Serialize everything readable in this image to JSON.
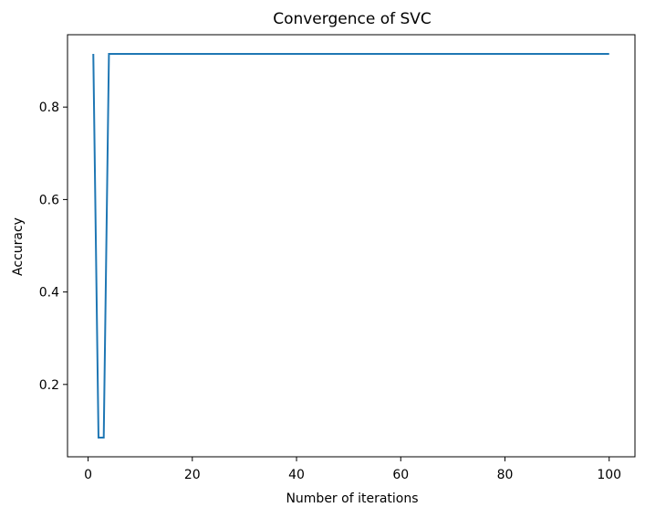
{
  "chart_data": {
    "type": "line",
    "title": "Convergence of SVC",
    "xlabel": "Number of iterations",
    "ylabel": "Accuracy",
    "xlim": [
      -3.95,
      104.95
    ],
    "ylim": [
      0.0435,
      0.9565
    ],
    "xticks": [
      0,
      20,
      40,
      60,
      80,
      100
    ],
    "xtick_labels": [
      "0",
      "20",
      "40",
      "60",
      "80",
      "100"
    ],
    "yticks": [
      0.2,
      0.4,
      0.6,
      0.8
    ],
    "ytick_labels": [
      "0.2",
      "0.4",
      "0.6",
      "0.8"
    ],
    "grid": false,
    "legend": "none",
    "series": [
      {
        "color": "#1f77b4",
        "x": [
          1,
          2,
          3,
          4,
          5,
          10,
          20,
          30,
          40,
          50,
          60,
          70,
          80,
          90,
          100
        ],
        "y": [
          0.915,
          0.085,
          0.085,
          0.915,
          0.915,
          0.915,
          0.915,
          0.915,
          0.915,
          0.915,
          0.915,
          0.915,
          0.915,
          0.915,
          0.915
        ]
      }
    ]
  }
}
